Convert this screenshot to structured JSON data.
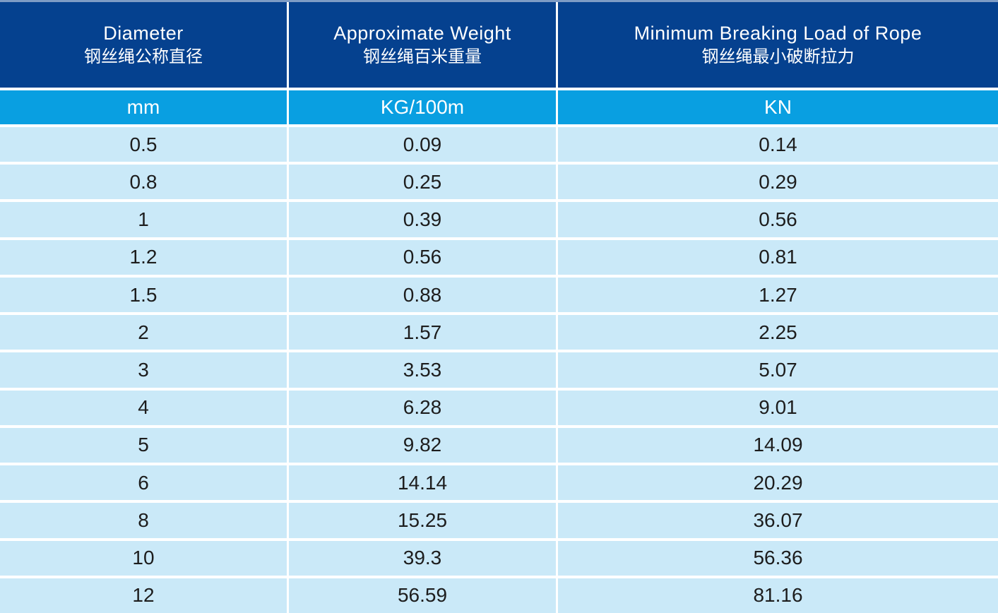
{
  "chart_data": {
    "type": "table",
    "columns": [
      {
        "title_en": "Diameter",
        "title_zh": "钢丝绳公称直径",
        "unit": "mm"
      },
      {
        "title_en": "Approximate Weight",
        "title_zh": "钢丝绳百米重量",
        "unit": "KG/100m"
      },
      {
        "title_en": "Minimum Breaking Load of Rope",
        "title_zh": "钢丝绳最小破断拉力",
        "unit": "KN"
      }
    ],
    "rows": [
      [
        "0.5",
        "0.09",
        "0.14"
      ],
      [
        "0.8",
        "0.25",
        "0.29"
      ],
      [
        "1",
        "0.39",
        "0.56"
      ],
      [
        "1.2",
        "0.56",
        "0.81"
      ],
      [
        "1.5",
        "0.88",
        "1.27"
      ],
      [
        "2",
        "1.57",
        "2.25"
      ],
      [
        "3",
        "3.53",
        "5.07"
      ],
      [
        "4",
        "6.28",
        "9.01"
      ],
      [
        "5",
        "9.82",
        "14.09"
      ],
      [
        "6",
        "14.14",
        "20.29"
      ],
      [
        "8",
        "15.25",
        "36.07"
      ],
      [
        "10",
        "39.3",
        "56.36"
      ],
      [
        "12",
        "56.59",
        "81.16"
      ]
    ],
    "colors": {
      "header_bg": "#05418f",
      "units_bg": "#099fe1",
      "row_bg": "#cae9f8",
      "top_border": "#7e9cc5",
      "header_text": "#ffffff",
      "data_text": "#1d1d1d"
    }
  }
}
